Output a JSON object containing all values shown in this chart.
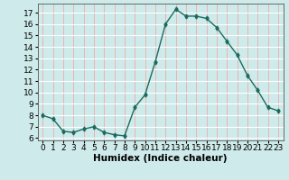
{
  "x": [
    0,
    1,
    2,
    3,
    4,
    5,
    6,
    7,
    8,
    9,
    10,
    11,
    12,
    13,
    14,
    15,
    16,
    17,
    18,
    19,
    20,
    21,
    22,
    23
  ],
  "y": [
    8.0,
    7.7,
    6.6,
    6.5,
    6.8,
    7.0,
    6.5,
    6.3,
    6.2,
    8.7,
    9.8,
    12.7,
    16.0,
    17.3,
    16.7,
    16.7,
    16.5,
    15.7,
    14.5,
    13.3,
    11.5,
    10.2,
    8.7,
    8.4
  ],
  "line_color": "#1a6b5e",
  "marker": "d",
  "marker_size": 2.5,
  "bg_color": "#ceeaea",
  "grid_color_h": "#ffffff",
  "grid_color_v": "#f0aaaa",
  "xlabel": "Humidex (Indice chaleur)",
  "xlabel_fontsize": 7.5,
  "ylim": [
    5.8,
    17.8
  ],
  "xlim": [
    -0.5,
    23.5
  ],
  "yticks": [
    6,
    7,
    8,
    9,
    10,
    11,
    12,
    13,
    14,
    15,
    16,
    17
  ],
  "xticks": [
    0,
    1,
    2,
    3,
    4,
    5,
    6,
    7,
    8,
    9,
    10,
    11,
    12,
    13,
    14,
    15,
    16,
    17,
    18,
    19,
    20,
    21,
    22,
    23
  ],
  "tick_fontsize": 6.5,
  "line_width": 1.0
}
